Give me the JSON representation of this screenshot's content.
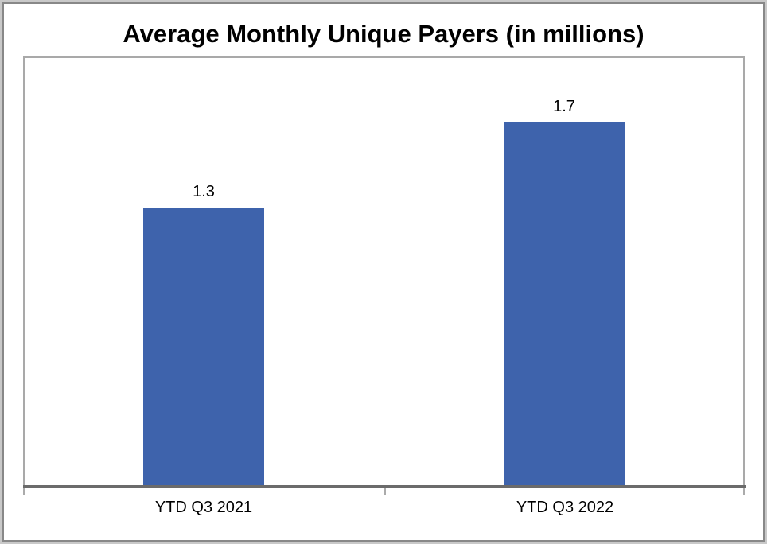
{
  "chart_data": {
    "type": "bar",
    "title": "Average Monthly Unique Payers (in millions)",
    "categories": [
      "YTD Q3 2021",
      "YTD Q3 2022"
    ],
    "values": [
      1.3,
      1.7
    ],
    "data_labels": [
      "1.3",
      "1.7"
    ],
    "ylim": [
      0,
      2.0
    ],
    "xlabel": "",
    "ylabel": "",
    "grid": false,
    "legend": false,
    "colors": {
      "bar": "#3e63ac",
      "axis_line": "#6b6b6b",
      "plot_border": "#a9a9a9",
      "tick": "#ababab",
      "frame_outer": "#c9c9c9",
      "frame_inner": "#888888",
      "text": "#000000"
    }
  }
}
